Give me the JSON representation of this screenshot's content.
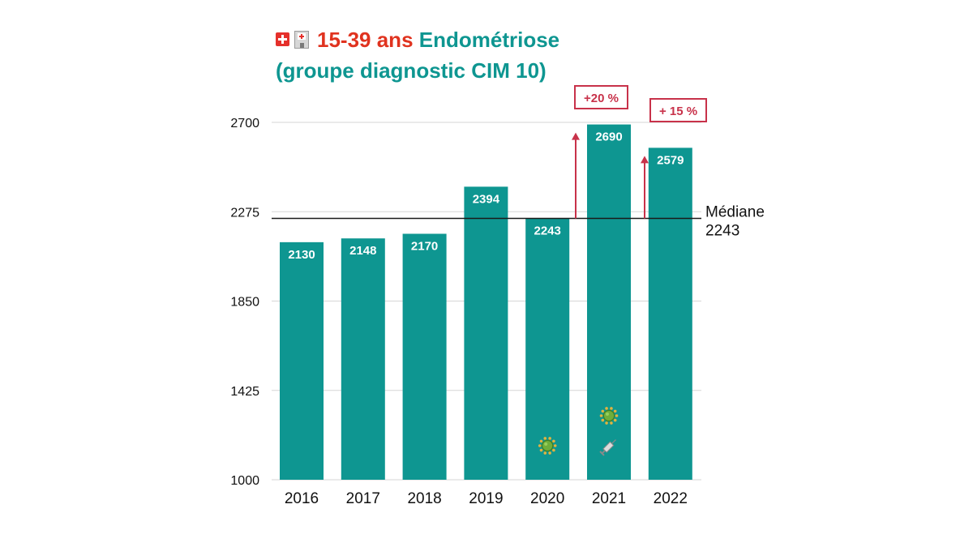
{
  "title": {
    "line1_ages": "15-39 ans",
    "line1_topic": "Endométriose",
    "line2": "(groupe diagnostic CIM 10)"
  },
  "icons": {
    "flag": "swiss-flag-icon",
    "hospital": "hospital-icon",
    "virus": "virus-icon",
    "syringe": "syringe-icon"
  },
  "colors": {
    "bar": "#0e9691",
    "title_red": "#e0331f",
    "annotation": "#c8324a",
    "median_line": "#1a1a1a",
    "grid": "#d6d6d6"
  },
  "chart_data": {
    "type": "bar",
    "title": "15-39 ans Endométriose (groupe diagnostic CIM 10)",
    "categories": [
      "2016",
      "2017",
      "2018",
      "2019",
      "2020",
      "2021",
      "2022"
    ],
    "values": [
      2130,
      2148,
      2170,
      2394,
      2243,
      2690,
      2579
    ],
    "value_labels": [
      "2130",
      "2148",
      "2170",
      "2394",
      "2243",
      "2690",
      "2579"
    ],
    "ylim": [
      1000,
      2700
    ],
    "yticks": [
      "1000",
      "1425",
      "1850",
      "2275",
      "2700"
    ],
    "grid": true,
    "xlabel": "",
    "ylabel": "",
    "median": {
      "value": 2243,
      "label_line1": "Médiane",
      "label_line2": "2243"
    },
    "annotations": [
      {
        "category": "2021",
        "text": "+20 %"
      },
      {
        "category": "2022",
        "text": "+ 15 %"
      }
    ],
    "covid_markers": [
      {
        "category": "2020",
        "icons": [
          "virus"
        ]
      },
      {
        "category": "2021",
        "icons": [
          "virus",
          "syringe"
        ]
      }
    ]
  }
}
